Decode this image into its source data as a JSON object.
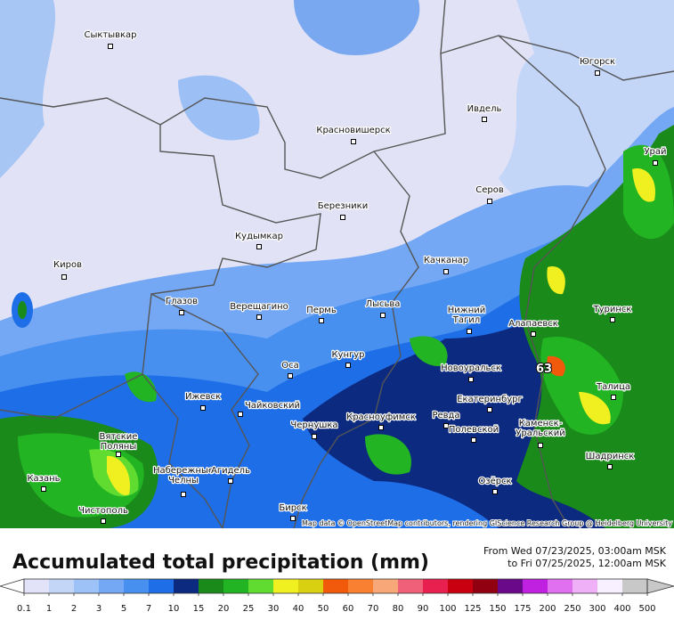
{
  "map": {
    "cities": [
      [
        "Сыктывкар"
      ],
      [
        "Югорск"
      ],
      [
        "Ивдель"
      ],
      [
        "Красновишерск"
      ],
      [
        "Урай"
      ],
      [
        "Серов"
      ],
      [
        "Березники"
      ],
      [
        "Кудымкар"
      ],
      [
        "Киров"
      ],
      [
        "Качканар"
      ],
      [
        "Глазов"
      ],
      [
        "Верещагино"
      ],
      [
        "Пермь"
      ],
      [
        "Лысьва"
      ],
      [
        "Нижний",
        "Тагил"
      ],
      [
        "Алапаевск"
      ],
      [
        "Туринск"
      ],
      [
        "Оса"
      ],
      [
        "Кунгур"
      ],
      [
        "Новоуральск"
      ],
      [
        "Ижевск"
      ],
      [
        "Чайковский"
      ],
      [
        "Екатеринбург"
      ],
      [
        "Талица"
      ],
      [
        "Красноуфимск"
      ],
      [
        "Ревда"
      ],
      [
        "Чернушка"
      ],
      [
        "Полевской"
      ],
      [
        "Каменск-",
        "Уральский"
      ],
      [
        "Вятские",
        "Поляны"
      ],
      [
        "Шадринск"
      ],
      [
        "Казань"
      ],
      [
        "Набережные",
        "Челны"
      ],
      [
        "Агидель"
      ],
      [
        "Озёрск"
      ],
      [
        "Чистополь"
      ],
      [
        "Бирск"
      ]
    ],
    "max_label": "63",
    "attribution": "Map data © OpenStreetMap contributors, rendering GIScience Research Group @ Heidelberg University"
  },
  "header": {
    "title": "Accumulated total precipitation (mm)",
    "from": "From Wed 07/23/2025, 03:00am MSK",
    "to": "to Fri 07/25/2025, 12:00am MSK"
  },
  "legend": {
    "ticks": [
      0.1,
      1,
      2,
      3,
      5,
      7,
      10,
      15,
      20,
      25,
      30,
      40,
      50,
      60,
      70,
      80,
      90,
      100,
      125,
      150,
      175,
      200,
      250,
      300,
      400,
      500
    ],
    "colors": [
      "#e2e2f8",
      "#c4d6f8",
      "#9cc2f8",
      "#74a8f4",
      "#4890f0",
      "#1e6ee8",
      "#0c2a80",
      "#1a8a1a",
      "#22b422",
      "#60dc30",
      "#f0f020",
      "#d8d010",
      "#f05a0a",
      "#f88030",
      "#f8a878",
      "#f06078",
      "#e82050",
      "#c80010",
      "#900010",
      "#6a0a8a",
      "#c020e0",
      "#e070f0",
      "#f0b0f8",
      "#f8f0ff",
      "#c8c8c8"
    ],
    "low_color": "#ffffff",
    "high_color": "#c8c8c8"
  }
}
